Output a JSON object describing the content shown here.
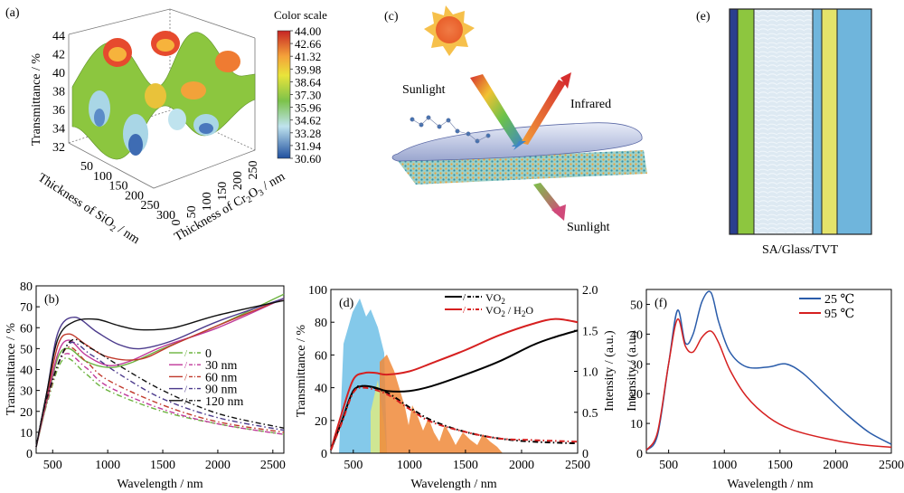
{
  "panels": {
    "a": {
      "label": "(a)",
      "zlabel": "Transmittance / %",
      "xlabel_sio2": "Thickness of SiO",
      "xlabel_sio2_sub": "2",
      "xlabel_sio2_unit": " / nm",
      "ylabel_cr2o3_a": "Thickness of Cr",
      "ylabel_cr2o3_sub1": "2",
      "ylabel_cr2o3_b": "O",
      "ylabel_cr2o3_sub2": "3",
      "ylabel_cr2o3_unit": " / nm",
      "z_ticks": [
        "44",
        "42",
        "40",
        "38",
        "36",
        "34",
        "32"
      ],
      "sio2_ticks": [
        "50",
        "100",
        "150",
        "200",
        "250",
        "300"
      ],
      "cr2o3_ticks": [
        "0",
        "50",
        "100",
        "150",
        "200",
        "250"
      ],
      "colorbar_title": "Color scale",
      "colorbar_ticks": [
        "44.00",
        "42.66",
        "41.32",
        "39.98",
        "38.64",
        "37.30",
        "35.96",
        "34.62",
        "33.28",
        "31.94",
        "30.60"
      ]
    },
    "c": {
      "label": "(c)",
      "sunlight_in": "Sunlight",
      "infrared": "Infrared",
      "sunlight_out": "Sunlight"
    },
    "e": {
      "label": "(e)",
      "caption": "SA/Glass/TVT",
      "layer_colors": [
        "#2b3f8e",
        "#8dc63f",
        "#dde9f2",
        "#6fb5dc",
        "#e4e36a",
        "#6fb5dc"
      ]
    },
    "b": {
      "label": "(b)",
      "ylabel": "Transmittance / %",
      "xlabel": "Wavelength / nm",
      "x_ticks": [
        "500",
        "1000",
        "1500",
        "2000",
        "2500"
      ],
      "y_ticks": [
        "0",
        "10",
        "20",
        "30",
        "40",
        "50",
        "60",
        "70",
        "80"
      ],
      "legend": [
        "0",
        "30 nm",
        "60 nm",
        "90 nm",
        "120 nm"
      ],
      "legend_slash": "/",
      "colors": [
        "#6cb33f",
        "#c0399a",
        "#c0392b",
        "#4b3a8c",
        "#111111"
      ]
    },
    "d": {
      "label": "(d)",
      "ylabel": "Transmittance / %",
      "ylabel_right": "Intensity / (a.u.)",
      "xlabel": "Wavelength / nm",
      "x_ticks": [
        "500",
        "1000",
        "1500",
        "2000",
        "2500"
      ],
      "y_ticks": [
        "0",
        "20",
        "40",
        "60",
        "80",
        "100"
      ],
      "y2_ticks": [
        "0",
        "0.5",
        "1.0",
        "1.5",
        "2.0"
      ],
      "legend": [
        {
          "text": "VO",
          "sub": "2",
          "tail": "",
          "color": "#000000"
        },
        {
          "text": "VO",
          "sub": "2",
          "tail": " / H",
          "sub2": "2",
          "tail2": "O",
          "color": "#d62020"
        }
      ],
      "legend_slash": "/",
      "band_colors": [
        "#6fc0e6",
        "#f08a3a",
        "#d7e98a"
      ]
    },
    "f": {
      "label": "(f)",
      "ylabel": "Intensity / (a.u.)",
      "xlabel": "Wavelength / nm",
      "x_ticks": [
        "500",
        "1000",
        "1500",
        "2000",
        "2500"
      ],
      "y_ticks": [
        "0",
        "10",
        "20",
        "30",
        "40",
        "50"
      ],
      "legend": [
        {
          "text": "25 ℃",
          "color": "#2a5caa"
        },
        {
          "text": "95 ℃",
          "color": "#d62020"
        }
      ]
    }
  },
  "chart_data": [
    {
      "panel": "b",
      "type": "line",
      "xlim": [
        350,
        2600
      ],
      "ylim": [
        0,
        80
      ],
      "series": [
        {
          "name": "0",
          "style": "solid",
          "x": [
            350,
            450,
            550,
            650,
            800,
            1000,
            1200,
            1500,
            2000,
            2600
          ],
          "y": [
            3,
            25,
            46,
            50,
            44,
            41,
            43,
            50,
            61,
            76
          ]
        },
        {
          "name": "30 nm",
          "style": "solid",
          "x": [
            350,
            450,
            550,
            650,
            800,
            1000,
            1200,
            1500,
            2000,
            2600
          ],
          "y": [
            3,
            26,
            48,
            54,
            47,
            42,
            44,
            51,
            60,
            74
          ]
        },
        {
          "name": "60 nm",
          "style": "solid",
          "x": [
            350,
            450,
            550,
            650,
            800,
            1000,
            1300,
            1600,
            2000,
            2600
          ],
          "y": [
            3,
            28,
            52,
            57,
            52,
            46,
            45,
            52,
            61,
            74
          ]
        },
        {
          "name": "90 nm",
          "style": "solid",
          "x": [
            350,
            450,
            550,
            700,
            900,
            1100,
            1300,
            1600,
            2000,
            2600
          ],
          "y": [
            3,
            30,
            58,
            65,
            58,
            52,
            50,
            54,
            63,
            74
          ]
        },
        {
          "name": "120 nm",
          "style": "solid",
          "x": [
            350,
            450,
            550,
            700,
            900,
            1100,
            1300,
            1600,
            2000,
            2600
          ],
          "y": [
            3,
            30,
            55,
            63,
            64,
            61,
            59,
            60,
            66,
            73
          ]
        },
        {
          "name": "0",
          "style": "dashdot",
          "x": [
            350,
            450,
            600,
            800,
            1000,
            1500,
            2000,
            2600
          ],
          "y": [
            3,
            24,
            45,
            38,
            30,
            20,
            14,
            9
          ]
        },
        {
          "name": "30 nm",
          "style": "dashdot",
          "x": [
            350,
            450,
            600,
            800,
            1000,
            1500,
            2000,
            2600
          ],
          "y": [
            3,
            25,
            47,
            41,
            32,
            21,
            14,
            9
          ]
        },
        {
          "name": "60 nm",
          "style": "dashdot",
          "x": [
            350,
            450,
            620,
            800,
            1000,
            1500,
            2000,
            2600
          ],
          "y": [
            3,
            26,
            50,
            44,
            35,
            23,
            15,
            10
          ]
        },
        {
          "name": "90 nm",
          "style": "dashdot",
          "x": [
            350,
            450,
            640,
            850,
            1100,
            1500,
            2000,
            2600
          ],
          "y": [
            3,
            27,
            52,
            47,
            38,
            26,
            17,
            11
          ]
        },
        {
          "name": "120 nm",
          "style": "dashdot",
          "x": [
            350,
            450,
            650,
            850,
            1100,
            1500,
            2000,
            2600
          ],
          "y": [
            3,
            27,
            53,
            50,
            42,
            30,
            19,
            12
          ]
        }
      ]
    },
    {
      "panel": "d",
      "type": "line",
      "xlim": [
        300,
        2500
      ],
      "ylim": [
        0,
        100
      ],
      "y2lim": [
        0,
        2.0
      ],
      "series": [
        {
          "name": "VO2",
          "style": "solid",
          "x": [
            300,
            400,
            500,
            600,
            700,
            800,
            1000,
            1200,
            1500,
            1800,
            2100,
            2300,
            2500
          ],
          "y": [
            2,
            20,
            38,
            41,
            40,
            38,
            38,
            41,
            48,
            56,
            66,
            71,
            75
          ]
        },
        {
          "name": "VO2 / H2O",
          "style": "solid",
          "x": [
            300,
            400,
            500,
            600,
            700,
            800,
            1000,
            1200,
            1500,
            1800,
            2100,
            2300,
            2500
          ],
          "y": [
            2,
            25,
            45,
            49,
            49,
            48,
            50,
            55,
            63,
            72,
            79,
            82,
            80
          ]
        },
        {
          "name": "VO2",
          "style": "dashdot",
          "x": [
            300,
            400,
            500,
            600,
            800,
            1000,
            1200,
            1500,
            1800,
            2100,
            2500
          ],
          "y": [
            2,
            20,
            38,
            41,
            37,
            28,
            20,
            13,
            9,
            7,
            6
          ]
        },
        {
          "name": "VO2 / H2O",
          "style": "dashdot",
          "x": [
            300,
            400,
            500,
            600,
            800,
            1000,
            1200,
            1500,
            1800,
            2100,
            2500
          ],
          "y": [
            2,
            19,
            37,
            40,
            36,
            27,
            19,
            13,
            9,
            8,
            7
          ]
        }
      ]
    },
    {
      "panel": "f",
      "type": "line",
      "xlim": [
        300,
        2500
      ],
      "ylim": [
        0,
        55
      ],
      "series": [
        {
          "name": "25 ℃",
          "x": [
            300,
            400,
            500,
            580,
            650,
            720,
            800,
            880,
            950,
            1050,
            1200,
            1400,
            1550,
            1700,
            1900,
            2100,
            2300,
            2500
          ],
          "y": [
            1,
            6,
            30,
            48,
            37,
            40,
            51,
            54,
            44,
            34,
            29,
            29,
            30,
            27,
            20,
            13,
            7,
            3
          ]
        },
        {
          "name": "95 ℃",
          "x": [
            300,
            400,
            500,
            580,
            650,
            720,
            800,
            880,
            950,
            1050,
            1200,
            1400,
            1600,
            1900,
            2200,
            2500
          ],
          "y": [
            1,
            7,
            30,
            45,
            36,
            34,
            39,
            41,
            37,
            28,
            19,
            12,
            8,
            5,
            3,
            2
          ]
        }
      ]
    }
  ]
}
